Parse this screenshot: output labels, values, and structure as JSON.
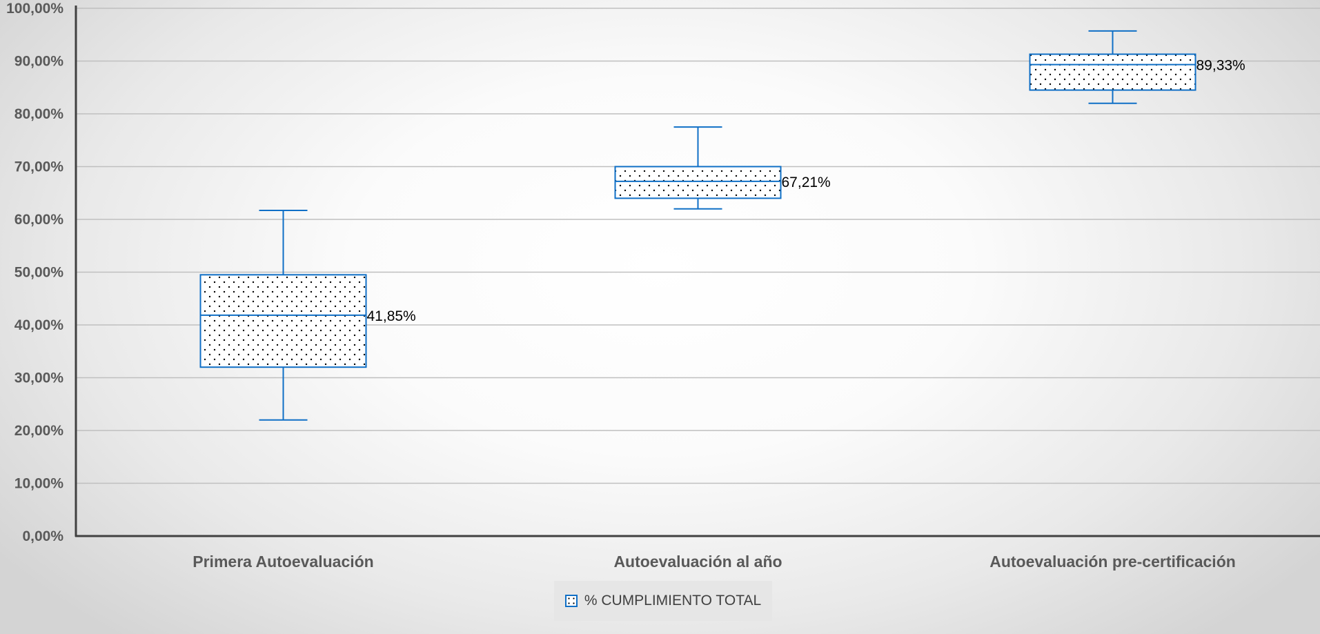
{
  "chart_data": {
    "type": "boxplot",
    "title": "",
    "xlabel": "",
    "ylabel": "",
    "ylim": [
      0,
      100
    ],
    "y_ticks": [
      "0,00%",
      "10,00%",
      "20,00%",
      "30,00%",
      "40,00%",
      "50,00%",
      "60,00%",
      "70,00%",
      "80,00%",
      "90,00%",
      "100,00%"
    ],
    "grid": true,
    "legend_position": "bottom",
    "series": [
      {
        "name": "% CUMPLIMIENTO TOTAL",
        "boxes": [
          {
            "category": "Primera Autoevaluación",
            "min": 22.0,
            "q1": 32.0,
            "median": 41.85,
            "q3": 49.5,
            "max": 61.7,
            "label": "41,85%"
          },
          {
            "category": "Autoevaluación al año",
            "min": 62.0,
            "q1": 64.0,
            "median": 67.21,
            "q3": 70.0,
            "max": 77.5,
            "label": "67,21%"
          },
          {
            "category": "Autoevaluación pre-certificación",
            "min": 82.0,
            "q1": 84.5,
            "median": 89.33,
            "q3": 91.3,
            "max": 95.7,
            "label": "89,33%"
          }
        ]
      }
    ],
    "colors": {
      "box_stroke": "#0f6fc6",
      "grid": "#bfbfbf",
      "axis": "#404040"
    }
  }
}
